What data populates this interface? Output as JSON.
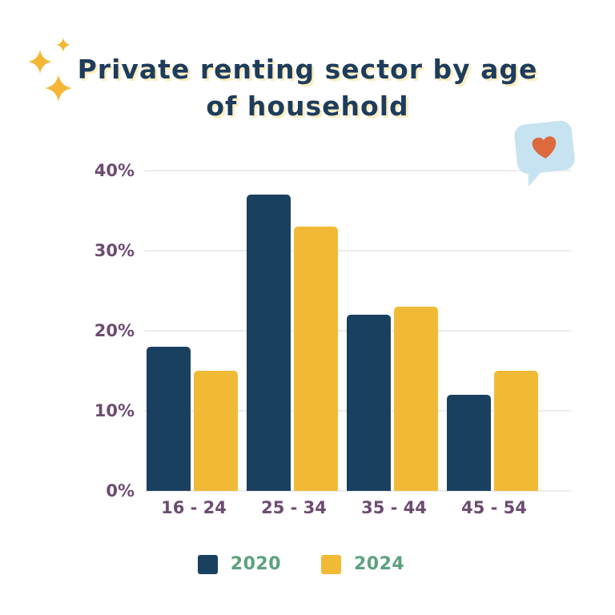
{
  "title": {
    "text": "Private renting sector by age of household",
    "line1": "Private renting sector by age",
    "line2": "of household"
  },
  "chart_data": {
    "type": "bar",
    "title": "Private renting sector by age of household",
    "categories": [
      "16 - 24",
      "25 - 34",
      "35 - 44",
      "45 - 54"
    ],
    "series": [
      {
        "name": "2020",
        "color": "#1a4060",
        "values": [
          18,
          37,
          22,
          12
        ]
      },
      {
        "name": "2024",
        "color": "#f1ba36",
        "values": [
          15,
          33,
          23,
          15
        ]
      }
    ],
    "xlabel": "",
    "ylabel": "",
    "ylim": [
      0,
      40
    ],
    "yticks": [
      0,
      10,
      20,
      30,
      40
    ],
    "ytick_labels": [
      "0%",
      "10%",
      "20%",
      "30%",
      "40%"
    ],
    "grid": true,
    "legend_position": "bottom"
  },
  "legend": {
    "items": [
      {
        "label": "2020",
        "color": "#1a4060"
      },
      {
        "label": "2024",
        "color": "#f1ba36"
      }
    ]
  },
  "theme": {
    "bar_2020": "#1a4060",
    "bar_2024": "#f1ba36",
    "axis_label": "#6d4b71",
    "legend_text": "#5ca17e",
    "gridline": "#ececec",
    "title_text": "#1e3c5b",
    "title_shadow": "#fceec2",
    "bubble": "#c7e3f1",
    "heart": "#dc6a3e",
    "sparkle": "#f3b735",
    "background": "#ffffff"
  },
  "icons": {
    "sparkles": "sparkle-icon",
    "heart": "heart-icon"
  }
}
